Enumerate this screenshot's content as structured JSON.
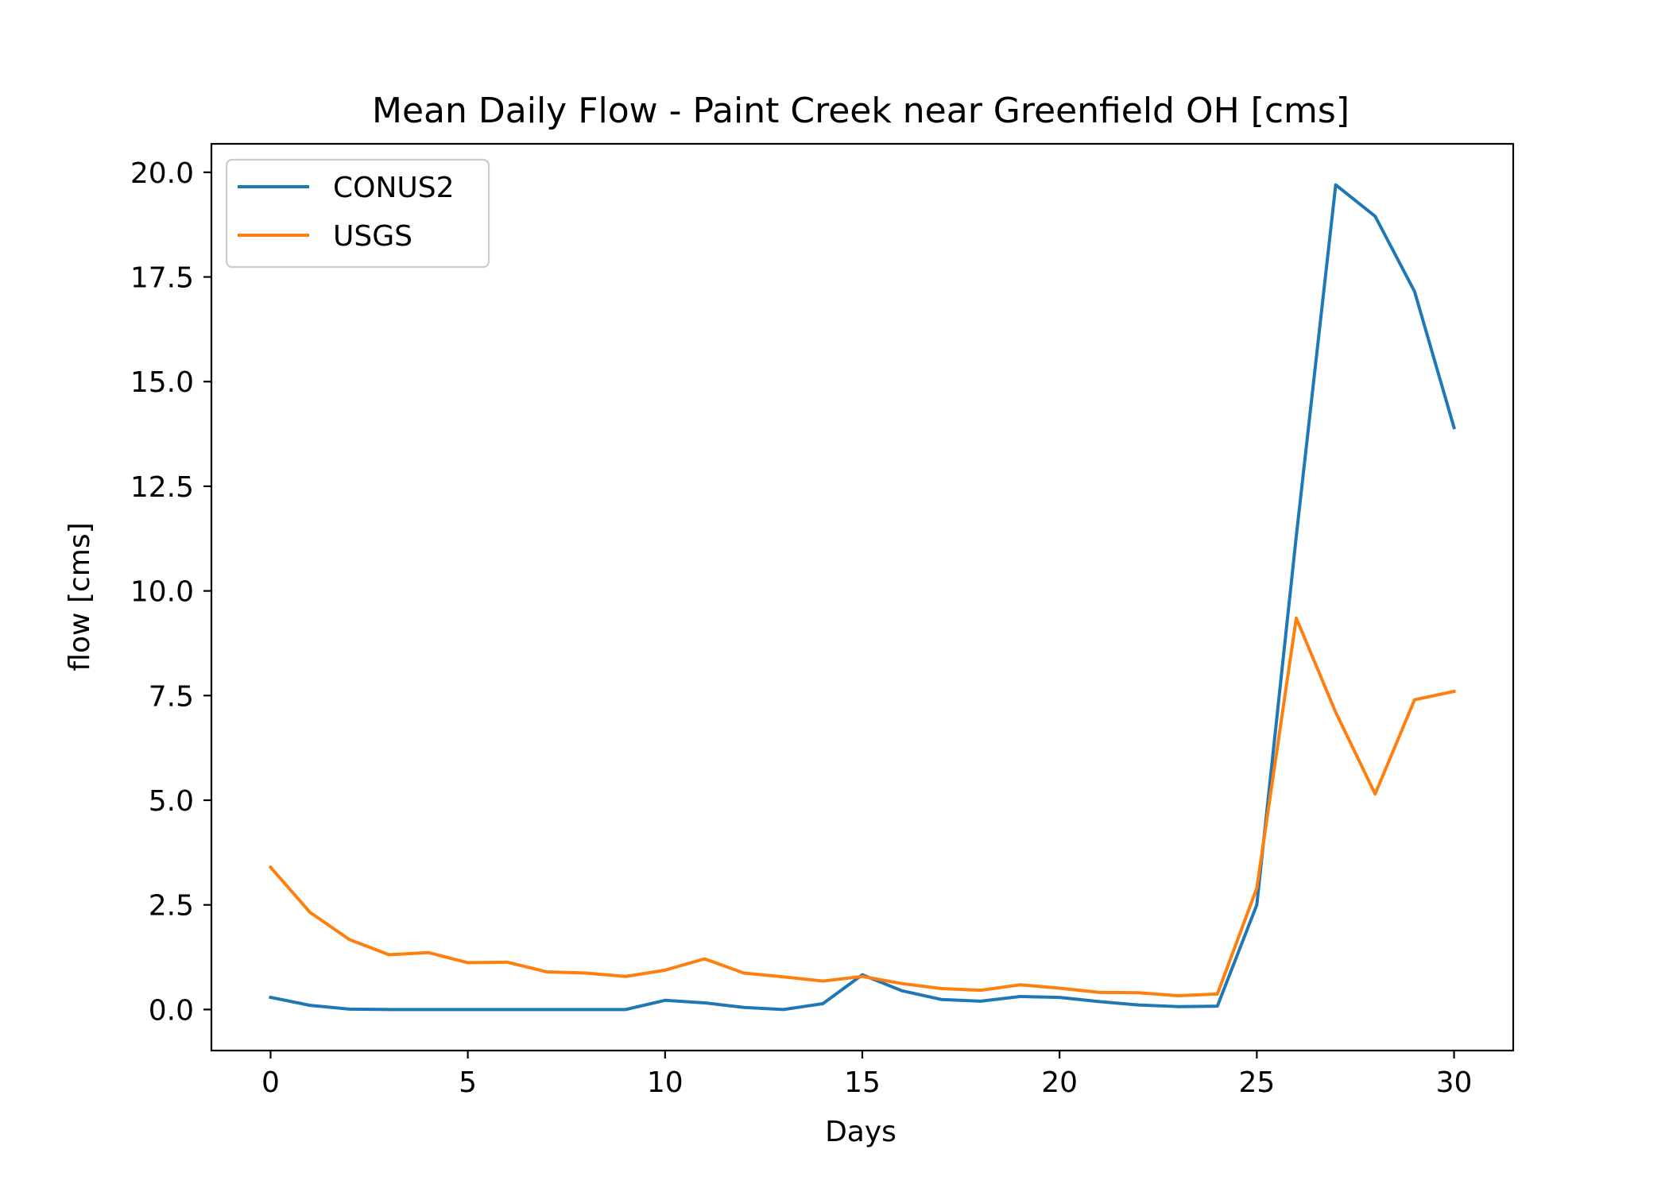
{
  "chart_data": {
    "type": "line",
    "title": "Mean Daily Flow - Paint Creek near Greenfield OH [cms]",
    "xlabel": "Days",
    "ylabel": "flow [cms]",
    "xlim": [
      -1.5,
      31.5
    ],
    "ylim": [
      -0.98,
      20.68
    ],
    "xticks": [
      0,
      5,
      10,
      15,
      20,
      25,
      30
    ],
    "xtick_labels": [
      "0",
      "5",
      "10",
      "15",
      "20",
      "25",
      "30"
    ],
    "yticks": [
      0.0,
      2.5,
      5.0,
      7.5,
      10.0,
      12.5,
      15.0,
      17.5,
      20.0
    ],
    "ytick_labels": [
      "0.0",
      "2.5",
      "5.0",
      "7.5",
      "10.0",
      "12.5",
      "15.0",
      "17.5",
      "20.0"
    ],
    "grid": false,
    "legend_position": "upper-left",
    "x": [
      0,
      1,
      2,
      3,
      4,
      5,
      6,
      7,
      8,
      9,
      10,
      11,
      12,
      13,
      14,
      15,
      16,
      17,
      18,
      19,
      20,
      21,
      22,
      23,
      24,
      25,
      26,
      27,
      28,
      29,
      30
    ],
    "series": [
      {
        "name": "CONUS2",
        "color": "#1f77b4",
        "values": [
          0.29,
          0.1,
          0.01,
          0.0,
          0.0,
          0.0,
          0.0,
          0.0,
          0.0,
          0.0,
          0.22,
          0.16,
          0.05,
          0.0,
          0.14,
          0.83,
          0.45,
          0.24,
          0.2,
          0.31,
          0.29,
          0.19,
          0.11,
          0.07,
          0.08,
          2.5,
          11.3,
          19.7,
          18.95,
          17.15,
          13.9
        ]
      },
      {
        "name": "USGS",
        "color": "#ff7f0e",
        "values": [
          3.4,
          2.32,
          1.67,
          1.31,
          1.36,
          1.12,
          1.13,
          0.9,
          0.87,
          0.79,
          0.94,
          1.21,
          0.87,
          0.78,
          0.68,
          0.79,
          0.62,
          0.5,
          0.46,
          0.59,
          0.51,
          0.41,
          0.4,
          0.33,
          0.37,
          2.9,
          9.35,
          7.1,
          5.15,
          7.4,
          7.6
        ]
      }
    ]
  }
}
